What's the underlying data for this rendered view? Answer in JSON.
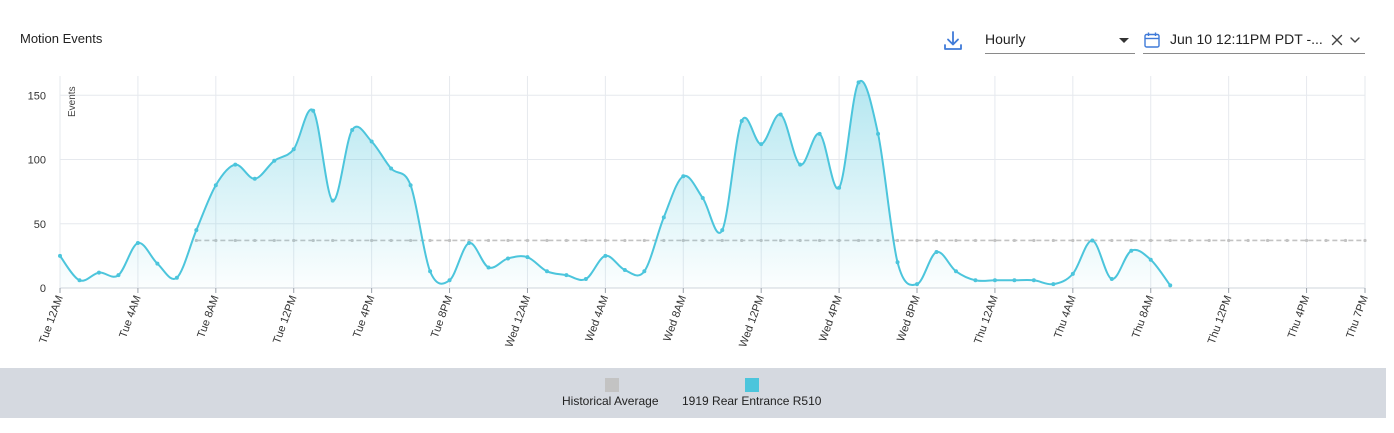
{
  "header": {
    "title": "Motion Events",
    "interval_select": {
      "value": "Hourly"
    },
    "date_range": {
      "value": "Jun 10 12:11PM PDT -..."
    }
  },
  "colors": {
    "series": "#4cc5dc",
    "average": "#c3c3c3",
    "accent": "#3f7ad8",
    "legend_bg": "#d5d9e0",
    "grid": "#e6e9ee"
  },
  "icons": {
    "download": "download-icon",
    "calendar": "calendar-icon",
    "clear": "close-icon",
    "dropdown": "chevron-down-icon"
  },
  "chart_data": {
    "type": "area",
    "title": "Motion Events",
    "xlabel": "",
    "ylabel": "Events",
    "ylim": [
      0,
      165
    ],
    "yticks": [
      0,
      50,
      100,
      150
    ],
    "grid": true,
    "legend_position": "bottom-center",
    "x_tick_labels": [
      "Tue 12AM",
      "Tue 4AM",
      "Tue 8AM",
      "Tue 12PM",
      "Tue 4PM",
      "Tue 8PM",
      "Wed 12AM",
      "Wed 4AM",
      "Wed 8AM",
      "Wed 12PM",
      "Wed 4PM",
      "Wed 8PM",
      "Thu 12AM",
      "Thu 4AM",
      "Thu 8AM",
      "Thu 12PM",
      "Thu 4PM",
      "Thu 7PM"
    ],
    "x_tick_hours": [
      0,
      4,
      8,
      12,
      16,
      20,
      24,
      28,
      32,
      36,
      40,
      44,
      48,
      52,
      56,
      60,
      64,
      67
    ],
    "x_range_hours": [
      0,
      67
    ],
    "series": [
      {
        "name": "Historical Average",
        "style": "dashed",
        "start_hour": 7,
        "end_hour": 67,
        "value": 37
      },
      {
        "name": "1919 Rear Entrance R510",
        "style": "area",
        "start_hour": 0,
        "values": [
          25,
          6,
          12,
          10,
          35,
          19,
          8,
          45,
          80,
          96,
          85,
          99,
          108,
          138,
          68,
          123,
          114,
          93,
          80,
          13,
          6,
          35,
          16,
          23,
          24,
          13,
          10,
          7,
          25,
          14,
          13,
          55,
          87,
          70,
          45,
          130,
          112,
          135,
          96,
          120,
          78,
          160,
          120,
          20,
          3,
          28,
          13,
          6,
          6,
          6,
          6,
          3,
          11,
          37,
          7,
          29,
          22,
          2
        ]
      }
    ]
  },
  "legend": {
    "items": [
      {
        "label": "Historical Average",
        "color": "#c3c3c3"
      },
      {
        "label": "1919 Rear Entrance R510",
        "color": "#4cc5dc"
      }
    ]
  }
}
